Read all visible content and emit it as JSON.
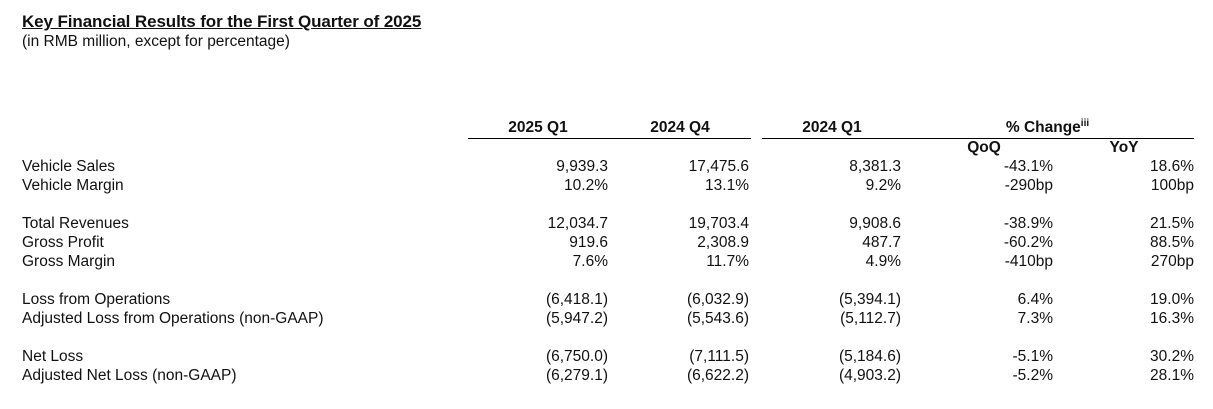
{
  "title": "Key Financial Results for the First Quarter of 2025",
  "subtitle": "(in RMB million, except for percentage)",
  "headers": {
    "col1": "2025 Q1",
    "col2": "2024 Q4",
    "col3": "2024 Q1",
    "change": "% Change",
    "change_note": "iii",
    "qoq": "QoQ",
    "yoy": "YoY"
  },
  "rows": [
    {
      "label": "Vehicle Sales",
      "c1": "9,939.3",
      "c2": "17,475.6",
      "c3": "8,381.3",
      "qoq": "-43.1%",
      "yoy": "18.6%"
    },
    {
      "label": "Vehicle Margin",
      "c1": "10.2%",
      "c2": "13.1%",
      "c3": "9.2%",
      "qoq": "-290bp",
      "yoy": "100bp"
    },
    {
      "label": "Total Revenues",
      "c1": "12,034.7",
      "c2": "19,703.4",
      "c3": "9,908.6",
      "qoq": "-38.9%",
      "yoy": "21.5%"
    },
    {
      "label": "Gross Profit",
      "c1": "919.6",
      "c2": "2,308.9",
      "c3": "487.7",
      "qoq": "-60.2%",
      "yoy": "88.5%"
    },
    {
      "label": "Gross Margin",
      "c1": "7.6%",
      "c2": "11.7%",
      "c3": "4.9%",
      "qoq": "-410bp",
      "yoy": "270bp"
    },
    {
      "label": "Loss from Operations",
      "c1": "(6,418.1)",
      "c2": "(6,032.9)",
      "c3": "(5,394.1)",
      "qoq": "6.4%",
      "yoy": "19.0%"
    },
    {
      "label": "Adjusted Loss from Operations (non-GAAP)",
      "c1": "(5,947.2)",
      "c2": "(5,543.6)",
      "c3": "(5,112.7)",
      "qoq": "7.3%",
      "yoy": "16.3%"
    },
    {
      "label": "Net Loss",
      "c1": "(6,750.0)",
      "c2": "(7,111.5)",
      "c3": "(5,184.6)",
      "qoq": "-5.1%",
      "yoy": "30.2%"
    },
    {
      "label": "Adjusted Net Loss (non-GAAP)",
      "c1": "(6,279.1)",
      "c2": "(6,622.2)",
      "c3": "(4,903.2)",
      "qoq": "-5.2%",
      "yoy": "28.1%"
    }
  ]
}
